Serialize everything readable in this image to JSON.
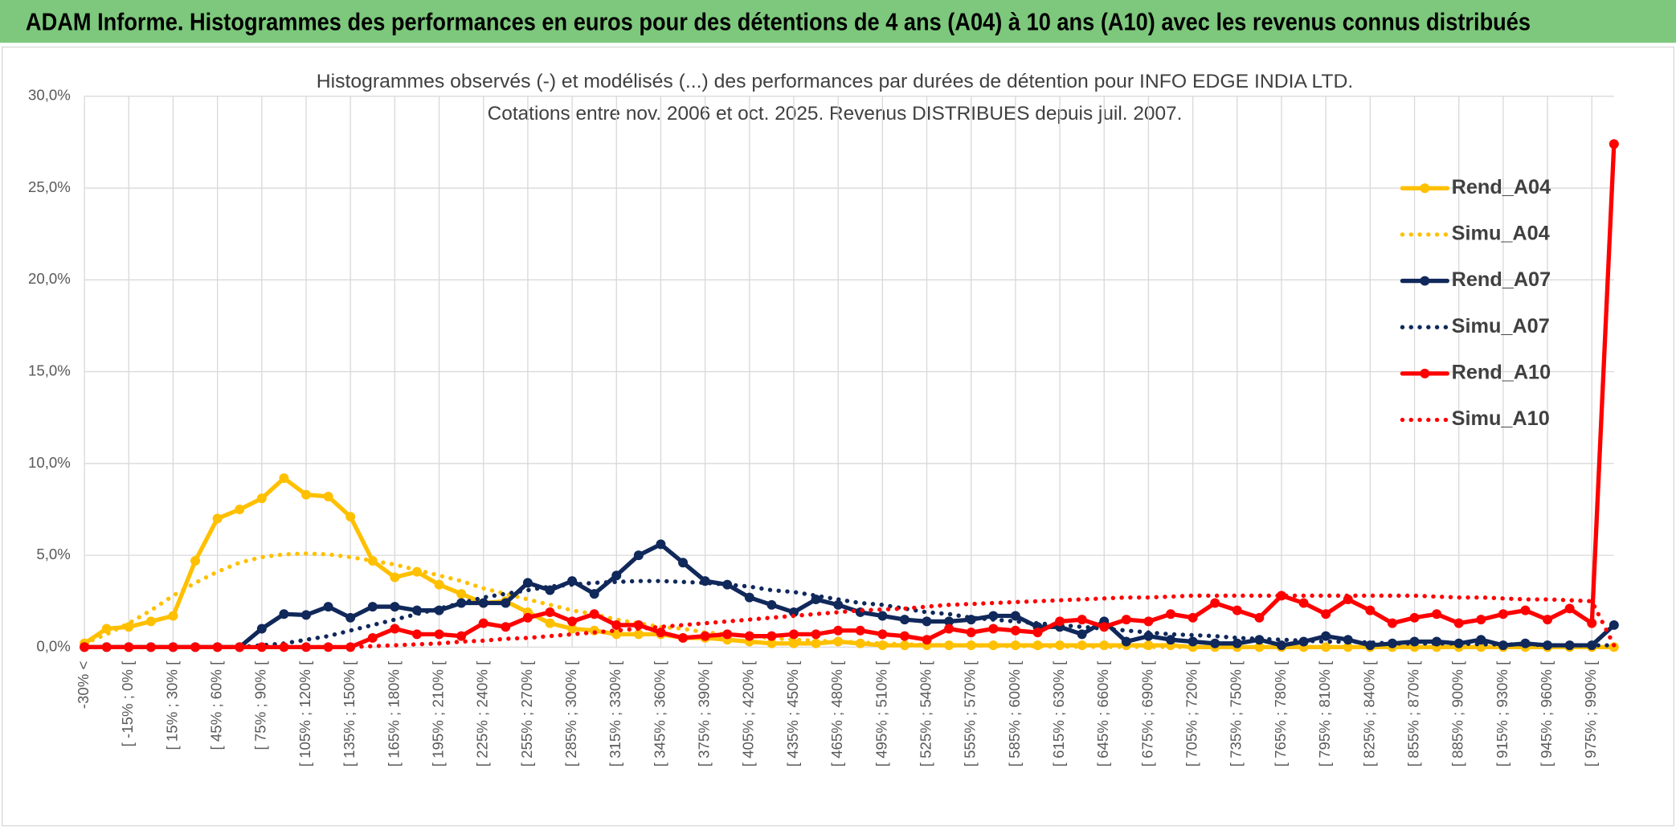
{
  "header": {
    "title": "ADAM Informe. Histogrammes des performances en euros pour des détentions de 4 ans (A04) à 10 ans (A10) avec les revenus connus distribués"
  },
  "chart_data": {
    "type": "line",
    "title": "Histogrammes observés (-) et modélisés (...) des performances par durées de détention pour INFO EDGE INDIA LTD.",
    "subtitle": "Cotations entre nov. 2006 et oct. 2025. Revenus DISTRIBUES depuis juil. 2007.",
    "categories": [
      "-30% <",
      null,
      "[ -15% ; 0% [",
      null,
      "[ 15% ; 30% [",
      null,
      "[ 45% ; 60% [",
      null,
      "[ 75% ; 90% [",
      null,
      "[ 105% ; 120% [",
      null,
      "[ 135% ; 150% [",
      null,
      "[ 165% ; 180% [",
      null,
      "[ 195% ; 210% [",
      null,
      "[ 225% ; 240% [",
      null,
      "[ 255% ; 270% [",
      null,
      "[ 285% ; 300% [",
      null,
      "[ 315% ; 330% [",
      null,
      "[ 345% ; 360% [",
      null,
      "[ 375% ; 390% [",
      null,
      "[ 405% ; 420% [",
      null,
      "[ 435% ; 450% [",
      null,
      "[ 465% ; 480% [",
      null,
      "[ 495% ; 510% [",
      null,
      "[ 525% ; 540% [",
      null,
      "[ 555% ; 570% [",
      null,
      "[ 585% ; 600% [",
      null,
      "[ 615% ; 630% [",
      null,
      "[ 645% ; 660% [",
      null,
      "[ 675% ; 690% [",
      null,
      "[ 705% ; 720% [",
      null,
      "[ 735% ; 750% [",
      null,
      "[ 765% ; 780% [",
      null,
      "[ 795% ; 810% [",
      null,
      "[ 825% ; 840% [",
      null,
      "[ 855% ; 870% [",
      null,
      "[ 885% ; 900% [",
      null,
      "[ 915% ; 930% [",
      null,
      "[ 945% ; 960% [",
      null,
      "[ 975% ; 990% [",
      null
    ],
    "ylim": [
      0,
      30
    ],
    "yticks": [
      {
        "value": 0,
        "label": "0,0%"
      },
      {
        "value": 5,
        "label": "5,0%"
      },
      {
        "value": 10,
        "label": "10,0%"
      },
      {
        "value": 15,
        "label": "15,0%"
      },
      {
        "value": 20,
        "label": "20,0%"
      },
      {
        "value": 25,
        "label": "25,0%"
      },
      {
        "value": 30,
        "label": "30,0%"
      }
    ],
    "grid": true,
    "xgrid": true,
    "legend": "right",
    "series": [
      {
        "name": "Rend_A04",
        "color": "#ffc000",
        "style": "solid",
        "marker": true,
        "values": [
          0.2,
          1.0,
          1.1,
          1.4,
          1.7,
          4.7,
          7.0,
          7.5,
          8.1,
          9.2,
          8.3,
          8.2,
          7.1,
          4.7,
          3.8,
          4.1,
          3.4,
          2.9,
          2.4,
          2.5,
          1.9,
          1.3,
          1.0,
          0.9,
          0.7,
          0.7,
          0.7,
          0.5,
          0.5,
          0.4,
          0.3,
          0.2,
          0.2,
          0.2,
          0.3,
          0.2,
          0.1,
          0.1,
          0.1,
          0.1,
          0.1,
          0.1,
          0.1,
          0.1,
          0.1,
          0.1,
          0.1,
          0.1,
          0.1,
          0.1,
          0,
          0,
          0,
          0,
          0,
          0,
          0,
          0,
          0,
          0,
          0,
          0,
          0,
          0,
          0,
          0,
          0,
          0,
          0,
          0
        ]
      },
      {
        "name": "Simu_A04",
        "color": "#ffc000",
        "style": "dotted",
        "marker": false,
        "values": [
          0.2,
          0.7,
          1.3,
          2.0,
          2.8,
          3.5,
          4.1,
          4.6,
          4.9,
          5.05,
          5.1,
          5.05,
          4.9,
          4.7,
          4.5,
          4.2,
          3.9,
          3.6,
          3.2,
          2.9,
          2.6,
          2.3,
          2.0,
          1.8,
          1.5,
          1.3,
          1.1,
          1.0,
          0.8,
          0.7,
          0.6,
          0.5,
          0.4,
          0.35,
          0.3,
          0.25,
          0.2,
          0.15,
          0.12,
          0.1,
          0.08,
          0.06,
          0.05,
          0.04,
          0.03,
          0.02,
          0.02,
          0.01,
          0.01,
          0.01,
          0,
          0,
          0,
          0,
          0,
          0,
          0,
          0,
          0,
          0,
          0,
          0,
          0,
          0,
          0,
          0,
          0,
          0,
          0,
          0
        ]
      },
      {
        "name": "Rend_A07",
        "color": "#10285a",
        "style": "solid",
        "marker": true,
        "values": [
          0,
          0,
          0,
          0,
          0,
          0,
          0,
          0,
          1.0,
          1.8,
          1.75,
          2.2,
          1.6,
          2.2,
          2.2,
          2.0,
          2.0,
          2.4,
          2.4,
          2.4,
          3.5,
          3.1,
          3.6,
          2.9,
          3.9,
          5.0,
          5.6,
          4.6,
          3.6,
          3.4,
          2.7,
          2.3,
          1.9,
          2.6,
          2.3,
          1.9,
          1.7,
          1.5,
          1.4,
          1.4,
          1.5,
          1.7,
          1.7,
          1.1,
          1.1,
          0.7,
          1.4,
          0.3,
          0.6,
          0.4,
          0.3,
          0.2,
          0.2,
          0.4,
          0.1,
          0.3,
          0.6,
          0.4,
          0.1,
          0.2,
          0.3,
          0.3,
          0.2,
          0.4,
          0.1,
          0.2,
          0.1,
          0.1,
          0.1,
          1.2
        ]
      },
      {
        "name": "Simu_A07",
        "color": "#10285a",
        "style": "dotted",
        "marker": false,
        "values": [
          0,
          0,
          0,
          0,
          0,
          0,
          0,
          0,
          0.1,
          0.2,
          0.4,
          0.6,
          0.9,
          1.2,
          1.5,
          1.8,
          2.1,
          2.4,
          2.7,
          2.9,
          3.1,
          3.3,
          3.4,
          3.5,
          3.55,
          3.6,
          3.6,
          3.55,
          3.5,
          3.4,
          3.3,
          3.1,
          3.0,
          2.8,
          2.6,
          2.4,
          2.3,
          2.1,
          1.9,
          1.8,
          1.6,
          1.5,
          1.4,
          1.3,
          1.2,
          1.1,
          1.0,
          0.9,
          0.8,
          0.7,
          0.65,
          0.6,
          0.5,
          0.45,
          0.4,
          0.35,
          0.3,
          0.3,
          0.25,
          0.2,
          0.2,
          0.2,
          0.2,
          0.15,
          0.15,
          0.15,
          0.1,
          0.1,
          0.1,
          0.1
        ]
      },
      {
        "name": "Rend_A10",
        "color": "#ff0000",
        "style": "solid",
        "marker": true,
        "values": [
          0,
          0,
          0,
          0,
          0,
          0,
          0,
          0,
          0,
          0,
          0,
          0,
          0,
          0.5,
          1.0,
          0.7,
          0.7,
          0.6,
          1.3,
          1.1,
          1.6,
          1.9,
          1.4,
          1.8,
          1.2,
          1.2,
          0.8,
          0.5,
          0.6,
          0.7,
          0.6,
          0.6,
          0.7,
          0.7,
          0.9,
          0.9,
          0.7,
          0.6,
          0.4,
          1.0,
          0.8,
          1.0,
          0.9,
          0.8,
          1.4,
          1.5,
          1.1,
          1.5,
          1.4,
          1.8,
          1.6,
          2.4,
          2.0,
          1.6,
          2.8,
          2.4,
          1.8,
          2.6,
          2.0,
          1.3,
          1.6,
          1.8,
          1.3,
          1.5,
          1.8,
          2.0,
          1.5,
          2.1,
          1.3,
          27.4
        ]
      },
      {
        "name": "Simu_A10",
        "color": "#ff0000",
        "style": "dotted",
        "marker": false,
        "values": [
          0,
          0,
          0,
          0,
          0,
          0,
          0,
          0,
          0,
          0,
          0,
          0,
          0,
          0.05,
          0.1,
          0.15,
          0.2,
          0.3,
          0.35,
          0.45,
          0.5,
          0.6,
          0.7,
          0.8,
          0.9,
          1.0,
          1.1,
          1.2,
          1.3,
          1.4,
          1.5,
          1.6,
          1.7,
          1.8,
          1.9,
          2.0,
          2.05,
          2.1,
          2.2,
          2.3,
          2.35,
          2.4,
          2.45,
          2.5,
          2.55,
          2.6,
          2.65,
          2.7,
          2.7,
          2.75,
          2.8,
          2.8,
          2.8,
          2.8,
          2.8,
          2.8,
          2.8,
          2.8,
          2.8,
          2.8,
          2.8,
          2.75,
          2.7,
          2.7,
          2.65,
          2.6,
          2.6,
          2.55,
          2.5,
          0.1
        ]
      }
    ]
  }
}
